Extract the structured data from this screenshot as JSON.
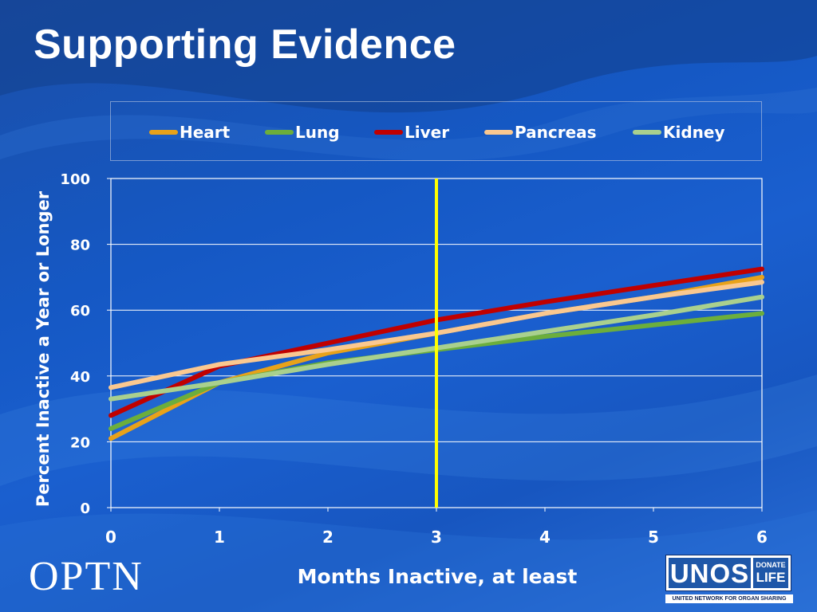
{
  "slide": {
    "title": "Supporting Evidence",
    "footer_logo_text": "OPTN",
    "unos_logo": {
      "brand": "UNOS",
      "badge_top": "DONATE",
      "badge_bottom": "LIFE",
      "caption": "UNITED NETWORK FOR ORGAN SHARING"
    }
  },
  "colors": {
    "heart": "#e8a21a",
    "lung": "#6cae3c",
    "liver": "#c00000",
    "pancreas": "#fac890",
    "kidney": "#a9d08e",
    "marker": "#ffff00",
    "text": "#ffffff"
  },
  "chart_data": {
    "type": "line",
    "title": "",
    "xlabel": "Months Inactive, at least",
    "ylabel": "Percent Inactive a Year or Longer",
    "x": [
      0,
      1,
      2,
      3,
      4,
      5,
      6
    ],
    "xticks": [
      "0",
      "1",
      "2",
      "3",
      "4",
      "5",
      "6"
    ],
    "yticks": [
      "0",
      "20",
      "40",
      "60",
      "80",
      "100"
    ],
    "xlim": [
      0,
      6
    ],
    "ylim": [
      0,
      100
    ],
    "grid": "horizontal",
    "legend_position": "top",
    "reference_line_x": 3,
    "series": [
      {
        "name": "Heart",
        "color_key": "heart",
        "values": [
          21,
          38,
          47,
          53,
          59,
          64,
          70
        ]
      },
      {
        "name": "Lung",
        "color_key": "lung",
        "values": [
          24,
          38,
          44,
          48,
          52,
          55.5,
          59
        ]
      },
      {
        "name": "Liver",
        "color_key": "liver",
        "values": [
          28,
          43,
          50,
          57,
          62.5,
          67.5,
          72.5
        ]
      },
      {
        "name": "Pancreas",
        "color_key": "pancreas",
        "values": [
          36.5,
          43.5,
          48,
          53,
          59,
          64,
          68.5
        ]
      },
      {
        "name": "Kidney",
        "color_key": "kidney",
        "values": [
          33,
          38,
          43.5,
          48.5,
          53.5,
          58.5,
          64
        ]
      }
    ]
  }
}
